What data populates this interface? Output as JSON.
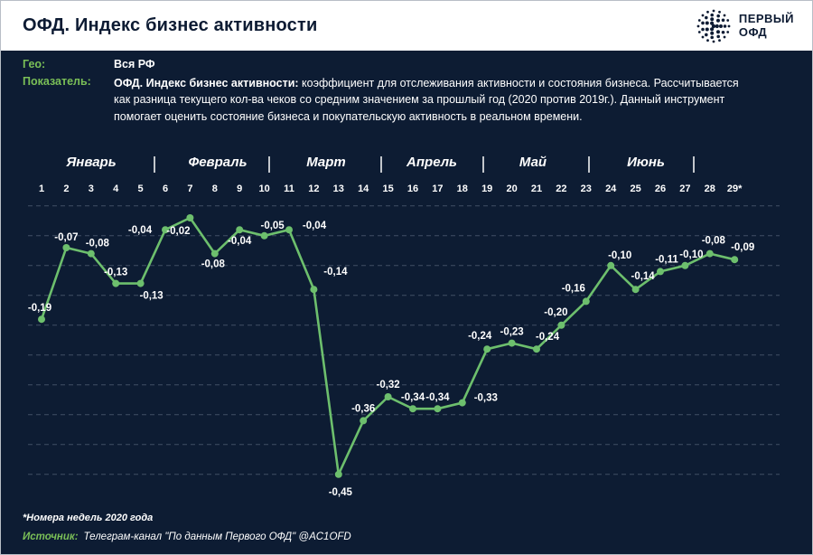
{
  "colors": {
    "background": "#0d1c33",
    "header_bg": "#ffffff",
    "title_text": "#0d1b33",
    "accent_green": "#7abf57",
    "line_green": "#6dbf6d",
    "grid_line": "rgba(173,190,208,0.32)",
    "label_text": "#ffffff"
  },
  "header": {
    "title": "ОФД. Индекс бизнес активности",
    "logo": {
      "line1": "ПЕРВЫЙ",
      "line2": "ОФД"
    }
  },
  "info": {
    "geo_label": "Гео:",
    "geo_value": "Вся РФ",
    "indicator_label": "Показатель:",
    "indicator_bold": "ОФД. Индекс бизнес активности:",
    "indicator_text": " коэффициент для отслеживания активности и состояния бизнеса. Рассчитывается как разница текущего кол-ва чеков со средним значением за прошлый год (2020 против 2019г.). Данный инструмент помогает оценить состояние бизнеса и покупательскую активность в реальном времени."
  },
  "chart_data": {
    "type": "line",
    "title": "ОФД. Индекс бизнес активности",
    "months": [
      "Январь",
      "Февраль",
      "Март",
      "Апрель",
      "Май",
      "Июнь"
    ],
    "x_tick_labels": [
      "1",
      "2",
      "3",
      "4",
      "5",
      "6",
      "7",
      "8",
      "9",
      "10",
      "11",
      "12",
      "13",
      "14",
      "15",
      "16",
      "17",
      "18",
      "19",
      "20",
      "21",
      "22",
      "23",
      "24",
      "25",
      "26",
      "27",
      "28",
      "29*"
    ],
    "values": [
      -0.19,
      -0.07,
      -0.08,
      -0.13,
      -0.13,
      -0.04,
      -0.02,
      -0.08,
      -0.04,
      -0.05,
      -0.04,
      -0.14,
      -0.45,
      -0.36,
      -0.32,
      -0.34,
      -0.34,
      -0.33,
      -0.24,
      -0.23,
      -0.24,
      -0.2,
      -0.16,
      -0.1,
      -0.14,
      -0.11,
      -0.1,
      -0.08,
      -0.09
    ],
    "point_labels": [
      "-0,19",
      "-0,07",
      "-0,08",
      "-0,13",
      "-0,13",
      "-0,04",
      "-0,02",
      "-0,08",
      "-0,04",
      "-0,05",
      "-0,04",
      "-0,14",
      "-0,45",
      "-0,36",
      "-0,32",
      "-0,34",
      "-0,34",
      "-0,33",
      "-0,24",
      "-0,23",
      "-0,24",
      "-0,20",
      "-0,16",
      "-0,10",
      "-0,14",
      "-0,11",
      "-0,10",
      "-0,08",
      "-0,09"
    ],
    "ylim": [
      -0.5,
      0
    ],
    "grid": "horizontal-dashed",
    "legend": "none",
    "line_color": "#6dbf6d",
    "marker": "circle",
    "label_color": "#ffffff"
  },
  "footer": {
    "footnote": "*Номера недель 2020 года",
    "source_label": "Источник:",
    "source_text": "Телеграм-канал \"По данным Первого ОФД\" @AC1OFD"
  }
}
